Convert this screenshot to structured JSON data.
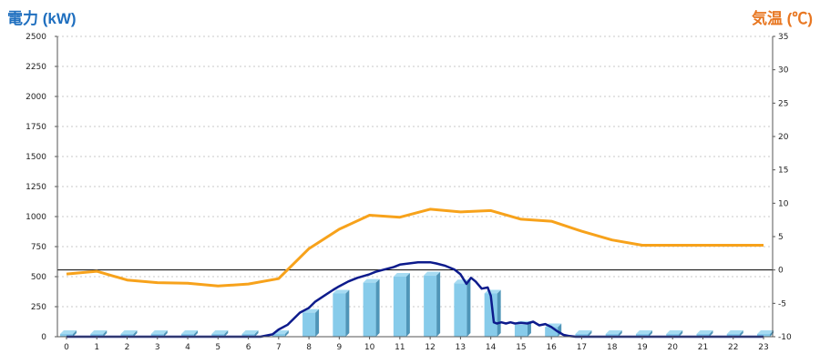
{
  "colors": {
    "left_title": "#1f6fbf",
    "right_title": "#e87722",
    "bar_front": "#87cbea",
    "bar_side": "#4f95b8",
    "bar_top": "#a6dbf2",
    "power_line": "#0d1b8c",
    "temp_line": "#f7a21b",
    "grid": "#c8c8c8",
    "axis": "#555555",
    "zero_line": "#000000"
  },
  "chart_data": {
    "type": "bar",
    "left_axis_title": "電力 (kW)",
    "right_axis_title": "気温 (℃)",
    "grid": true,
    "x_ticks": [
      "0",
      "1",
      "2",
      "3",
      "4",
      "5",
      "6",
      "7",
      "8",
      "9",
      "10",
      "11",
      "12",
      "13",
      "14",
      "15",
      "16",
      "17",
      "18",
      "19",
      "20",
      "21",
      "22",
      "23"
    ],
    "left_ticks": [
      "0",
      "250",
      "500",
      "750",
      "1000",
      "1250",
      "1500",
      "1750",
      "2000",
      "2250",
      "2500"
    ],
    "right_ticks": [
      "-10",
      "-5",
      "0",
      "5",
      "10",
      "15",
      "20",
      "25",
      "30",
      "35"
    ],
    "ylim_left": [
      0,
      2500
    ],
    "ylim_right": [
      -10,
      35
    ],
    "xlim": [
      -0.3,
      23.3
    ],
    "bar_series": {
      "categories": [
        0,
        1,
        2,
        3,
        4,
        5,
        6,
        7,
        8,
        9,
        10,
        11,
        12,
        13,
        14,
        15,
        16,
        17,
        18,
        19,
        20,
        21,
        22,
        23
      ],
      "values": [
        0,
        0,
        0,
        0,
        0,
        0,
        0,
        0,
        200,
        360,
        450,
        500,
        510,
        445,
        360,
        100,
        80,
        0,
        0,
        0,
        0,
        0,
        0,
        0
      ]
    },
    "power_series": {
      "x": [
        0,
        1,
        2,
        3,
        4,
        5,
        6,
        6.4,
        6.8,
        7,
        7.3,
        7.5,
        7.7,
        8,
        8.2,
        8.5,
        8.8,
        9,
        9.3,
        9.6,
        10,
        10.2,
        10.5,
        10.8,
        11,
        11.3,
        11.6,
        12,
        12.2,
        12.5,
        12.8,
        13,
        13.2,
        13.35,
        13.5,
        13.7,
        13.9,
        14,
        14.1,
        14.2,
        14.35,
        14.5,
        14.65,
        14.8,
        15,
        15.2,
        15.4,
        15.6,
        15.8,
        16,
        16.2,
        16.4,
        16.6,
        16.8,
        17,
        18,
        19,
        20,
        21,
        22,
        23
      ],
      "y": [
        0,
        0,
        0,
        0,
        0,
        0,
        0,
        0,
        20,
        60,
        100,
        150,
        200,
        240,
        290,
        340,
        390,
        420,
        460,
        490,
        520,
        540,
        560,
        580,
        600,
        610,
        620,
        620,
        610,
        590,
        560,
        520,
        440,
        490,
        460,
        400,
        410,
        340,
        120,
        110,
        120,
        110,
        120,
        110,
        115,
        110,
        125,
        95,
        105,
        80,
        45,
        15,
        5,
        0,
        0,
        0,
        0,
        0,
        0,
        0,
        0
      ]
    },
    "temperature_series": {
      "x": [
        0,
        1,
        2,
        3,
        4,
        5,
        6,
        7,
        8,
        9,
        10,
        11,
        12,
        13,
        14,
        15,
        16,
        17,
        18,
        19,
        20,
        21,
        22,
        23
      ],
      "y": [
        -0.6,
        -0.2,
        -1.5,
        -1.9,
        -2.0,
        -2.4,
        -2.1,
        -1.3,
        3.2,
        6.1,
        8.2,
        7.9,
        9.1,
        8.7,
        8.9,
        7.6,
        7.3,
        5.8,
        4.5,
        3.7,
        3.7,
        3.7,
        3.7,
        3.7
      ]
    }
  }
}
